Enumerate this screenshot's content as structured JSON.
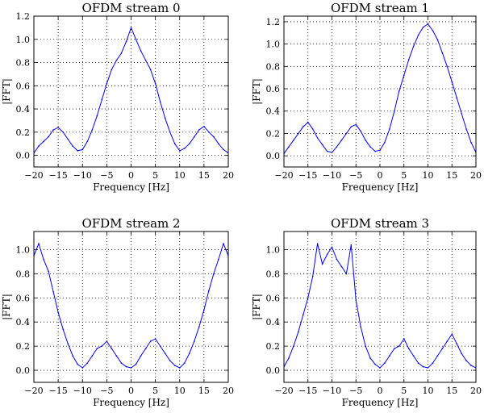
{
  "chart_data": [
    {
      "type": "line",
      "title": "OFDM stream 0",
      "xlabel": "Frequency [Hz]",
      "ylabel": "|FFT|",
      "xlim": [
        -20,
        20
      ],
      "ylim": [
        -0.1,
        1.2
      ],
      "xticks": [
        "−20",
        "−15",
        "−10",
        "−5",
        "0",
        "5",
        "10",
        "15",
        "20"
      ],
      "yticks": [
        "0.0",
        "0.2",
        "0.4",
        "0.6",
        "0.8",
        "1.0",
        "1.2"
      ],
      "grid": true,
      "series": [
        {
          "color": "#0000ff",
          "x": [
            -20,
            -19,
            -18,
            -17,
            -16,
            -15,
            -14,
            -13,
            -12,
            -11,
            -10,
            -9,
            -8,
            -7,
            -6,
            -5,
            -4,
            -3,
            -2,
            -1,
            0,
            1,
            2,
            3,
            4,
            5,
            6,
            7,
            8,
            9,
            10,
            11,
            12,
            13,
            14,
            15,
            16,
            17,
            18,
            19,
            20
          ],
          "y": [
            0.02,
            0.08,
            0.12,
            0.16,
            0.22,
            0.24,
            0.2,
            0.14,
            0.08,
            0.04,
            0.05,
            0.12,
            0.22,
            0.34,
            0.48,
            0.62,
            0.74,
            0.82,
            0.88,
            0.98,
            1.1,
            1.0,
            0.9,
            0.82,
            0.74,
            0.62,
            0.46,
            0.32,
            0.2,
            0.1,
            0.04,
            0.06,
            0.1,
            0.16,
            0.22,
            0.25,
            0.2,
            0.16,
            0.1,
            0.05,
            0.02
          ]
        }
      ]
    },
    {
      "type": "line",
      "title": "OFDM stream 1",
      "xlabel": "Frequency [Hz]",
      "ylabel": "|FFT|",
      "xlim": [
        -20,
        20
      ],
      "ylim": [
        -0.1,
        1.25
      ],
      "xticks": [
        "−20",
        "−15",
        "−10",
        "−5",
        "0",
        "5",
        "10",
        "15",
        "20"
      ],
      "yticks": [
        "0.0",
        "0.2",
        "0.4",
        "0.6",
        "0.8",
        "1.0",
        "1.2"
      ],
      "grid": true,
      "series": [
        {
          "color": "#0000ff",
          "x": [
            -20,
            -19,
            -18,
            -17,
            -16,
            -15,
            -14,
            -13,
            -12,
            -11,
            -10,
            -9,
            -8,
            -7,
            -6,
            -5,
            -4,
            -3,
            -2,
            -1,
            0,
            1,
            2,
            3,
            4,
            5,
            6,
            7,
            8,
            9,
            10,
            11,
            12,
            13,
            14,
            15,
            16,
            17,
            18,
            19,
            20
          ],
          "y": [
            0.02,
            0.08,
            0.14,
            0.2,
            0.26,
            0.3,
            0.24,
            0.16,
            0.1,
            0.04,
            0.03,
            0.08,
            0.14,
            0.2,
            0.26,
            0.28,
            0.22,
            0.14,
            0.08,
            0.04,
            0.05,
            0.12,
            0.24,
            0.4,
            0.58,
            0.72,
            0.86,
            0.98,
            1.08,
            1.15,
            1.18,
            1.12,
            1.04,
            0.92,
            0.8,
            0.66,
            0.52,
            0.38,
            0.24,
            0.12,
            0.03
          ]
        }
      ]
    },
    {
      "type": "line",
      "title": "OFDM stream 2",
      "xlabel": "Frequency [Hz]",
      "ylabel": "|FFT|",
      "xlim": [
        -20,
        20
      ],
      "ylim": [
        -0.1,
        1.15
      ],
      "xticks": [
        "−20",
        "−15",
        "−10",
        "−5",
        "0",
        "5",
        "10",
        "15",
        "20"
      ],
      "yticks": [
        "0.0",
        "0.2",
        "0.4",
        "0.6",
        "0.8",
        "1.0"
      ],
      "grid": true,
      "series": [
        {
          "color": "#0000ff",
          "x": [
            -20,
            -19,
            -18,
            -17,
            -16,
            -15,
            -14,
            -13,
            -12,
            -11,
            -10,
            -9,
            -8,
            -7,
            -6,
            -5,
            -4,
            -3,
            -2,
            -1,
            0,
            1,
            2,
            3,
            4,
            5,
            6,
            7,
            8,
            9,
            10,
            11,
            12,
            13,
            14,
            15,
            16,
            17,
            18,
            19,
            20
          ],
          "y": [
            0.95,
            1.05,
            0.92,
            0.82,
            0.65,
            0.48,
            0.34,
            0.22,
            0.12,
            0.05,
            0.02,
            0.06,
            0.12,
            0.18,
            0.2,
            0.24,
            0.18,
            0.12,
            0.06,
            0.03,
            0.02,
            0.05,
            0.12,
            0.18,
            0.24,
            0.26,
            0.2,
            0.14,
            0.08,
            0.04,
            0.02,
            0.06,
            0.14,
            0.24,
            0.36,
            0.5,
            0.66,
            0.8,
            0.92,
            1.05,
            0.95
          ]
        }
      ]
    },
    {
      "type": "line",
      "title": "OFDM stream 3",
      "xlabel": "Frequency [Hz]",
      "ylabel": "|FFT|",
      "xlim": [
        -20,
        20
      ],
      "ylim": [
        -0.1,
        1.15
      ],
      "xticks": [
        "−20",
        "−15",
        "−10",
        "−5",
        "0",
        "5",
        "10",
        "15",
        "20"
      ],
      "yticks": [
        "0.0",
        "0.2",
        "0.4",
        "0.6",
        "0.8",
        "1.0"
      ],
      "grid": true,
      "series": [
        {
          "color": "#0000ff",
          "x": [
            -20,
            -19,
            -18,
            -17,
            -16,
            -15,
            -14,
            -13,
            -12,
            -11,
            -10,
            -9,
            -8,
            -7,
            -6,
            -5,
            -4,
            -3,
            -2,
            -1,
            0,
            1,
            2,
            3,
            4,
            5,
            6,
            7,
            8,
            9,
            10,
            11,
            12,
            13,
            14,
            15,
            16,
            17,
            18,
            19,
            20
          ],
          "y": [
            0.03,
            0.1,
            0.2,
            0.32,
            0.46,
            0.6,
            0.78,
            1.05,
            0.88,
            0.96,
            1.02,
            0.92,
            0.86,
            0.8,
            1.04,
            0.58,
            0.36,
            0.2,
            0.1,
            0.05,
            0.02,
            0.06,
            0.12,
            0.18,
            0.2,
            0.26,
            0.18,
            0.12,
            0.06,
            0.03,
            0.02,
            0.06,
            0.12,
            0.18,
            0.24,
            0.3,
            0.22,
            0.14,
            0.08,
            0.04,
            0.02
          ]
        }
      ]
    }
  ]
}
